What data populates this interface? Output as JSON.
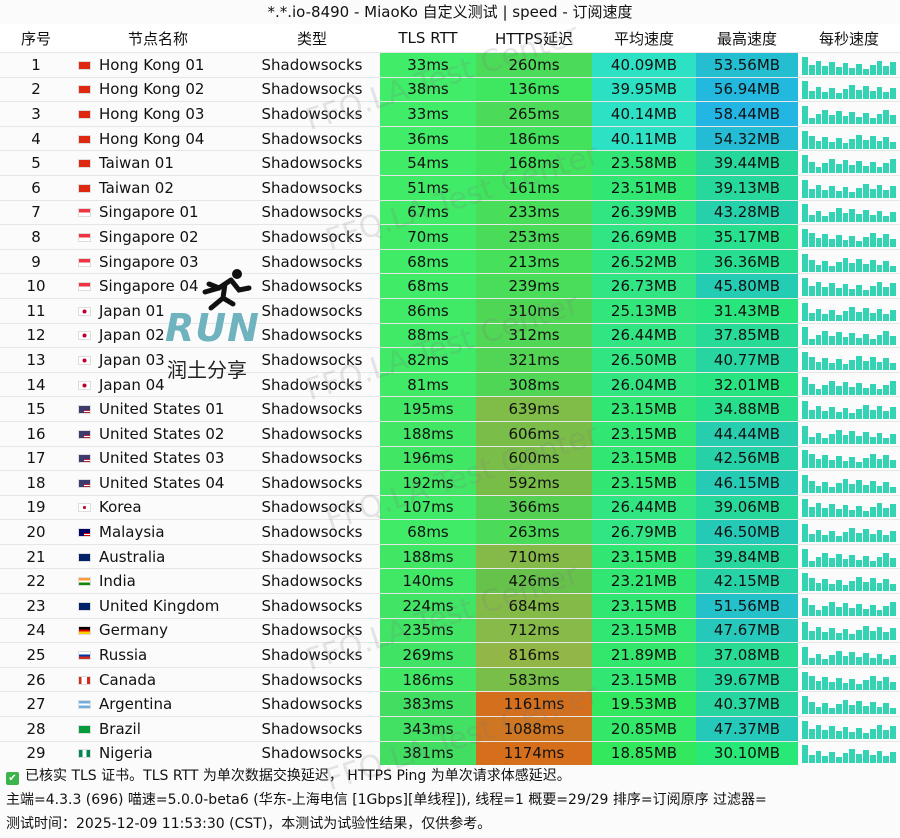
{
  "title": "*.*.io-8490 - MiaoKo 自定义测试 | speed - 订阅速度",
  "headers": [
    "序号",
    "节点名称",
    "类型",
    "TLS RTT",
    "HTTPS延迟",
    "平均速度",
    "最高速度",
    "每秒速度"
  ],
  "colors": {
    "sparkline": "#33d3b4",
    "tls": "#3ee868",
    "avg": "#2ee85a"
  },
  "rows": [
    {
      "idx": "1",
      "name": "Hong Kong 01",
      "flag": "hk",
      "type": "Shadowsocks",
      "tls": "33ms",
      "https": "260ms",
      "avg": "40.09MB",
      "max": "53.56MB"
    },
    {
      "idx": "2",
      "name": "Hong Kong 02",
      "flag": "hk",
      "type": "Shadowsocks",
      "tls": "38ms",
      "https": "136ms",
      "avg": "39.95MB",
      "max": "56.94MB"
    },
    {
      "idx": "3",
      "name": "Hong Kong 03",
      "flag": "hk",
      "type": "Shadowsocks",
      "tls": "33ms",
      "https": "265ms",
      "avg": "40.14MB",
      "max": "58.44MB"
    },
    {
      "idx": "4",
      "name": "Hong Kong 04",
      "flag": "hk",
      "type": "Shadowsocks",
      "tls": "36ms",
      "https": "186ms",
      "avg": "40.11MB",
      "max": "54.32MB"
    },
    {
      "idx": "5",
      "name": "Taiwan 01",
      "flag": "cn",
      "type": "Shadowsocks",
      "tls": "54ms",
      "https": "168ms",
      "avg": "23.58MB",
      "max": "39.44MB"
    },
    {
      "idx": "6",
      "name": "Taiwan 02",
      "flag": "cn",
      "type": "Shadowsocks",
      "tls": "51ms",
      "https": "161ms",
      "avg": "23.51MB",
      "max": "39.13MB"
    },
    {
      "idx": "7",
      "name": "Singapore 01",
      "flag": "sg",
      "type": "Shadowsocks",
      "tls": "67ms",
      "https": "233ms",
      "avg": "26.39MB",
      "max": "43.28MB"
    },
    {
      "idx": "8",
      "name": "Singapore 02",
      "flag": "sg",
      "type": "Shadowsocks",
      "tls": "70ms",
      "https": "253ms",
      "avg": "26.69MB",
      "max": "35.17MB"
    },
    {
      "idx": "9",
      "name": "Singapore 03",
      "flag": "sg",
      "type": "Shadowsocks",
      "tls": "68ms",
      "https": "213ms",
      "avg": "26.52MB",
      "max": "36.36MB"
    },
    {
      "idx": "10",
      "name": "Singapore 04",
      "flag": "sg",
      "type": "Shadowsocks",
      "tls": "68ms",
      "https": "239ms",
      "avg": "26.73MB",
      "max": "45.80MB"
    },
    {
      "idx": "11",
      "name": "Japan 01",
      "flag": "jp",
      "type": "Shadowsocks",
      "tls": "86ms",
      "https": "310ms",
      "avg": "25.13MB",
      "max": "31.43MB"
    },
    {
      "idx": "12",
      "name": "Japan 02",
      "flag": "jp",
      "type": "Shadowsocks",
      "tls": "88ms",
      "https": "312ms",
      "avg": "26.44MB",
      "max": "37.85MB"
    },
    {
      "idx": "13",
      "name": "Japan 03",
      "flag": "jp",
      "type": "Shadowsocks",
      "tls": "82ms",
      "https": "321ms",
      "avg": "26.50MB",
      "max": "40.77MB"
    },
    {
      "idx": "14",
      "name": "Japan 04",
      "flag": "jp",
      "type": "Shadowsocks",
      "tls": "81ms",
      "https": "308ms",
      "avg": "26.04MB",
      "max": "32.01MB"
    },
    {
      "idx": "15",
      "name": "United States 01",
      "flag": "us",
      "type": "Shadowsocks",
      "tls": "195ms",
      "https": "639ms",
      "avg": "23.15MB",
      "max": "34.88MB"
    },
    {
      "idx": "16",
      "name": "United States 02",
      "flag": "us",
      "type": "Shadowsocks",
      "tls": "188ms",
      "https": "606ms",
      "avg": "23.15MB",
      "max": "44.44MB"
    },
    {
      "idx": "17",
      "name": "United States 03",
      "flag": "us",
      "type": "Shadowsocks",
      "tls": "196ms",
      "https": "600ms",
      "avg": "23.15MB",
      "max": "42.56MB"
    },
    {
      "idx": "18",
      "name": "United States 04",
      "flag": "us",
      "type": "Shadowsocks",
      "tls": "192ms",
      "https": "592ms",
      "avg": "23.15MB",
      "max": "46.15MB"
    },
    {
      "idx": "19",
      "name": "Korea",
      "flag": "kr",
      "type": "Shadowsocks",
      "tls": "107ms",
      "https": "366ms",
      "avg": "26.44MB",
      "max": "39.06MB"
    },
    {
      "idx": "20",
      "name": "Malaysia",
      "flag": "my",
      "type": "Shadowsocks",
      "tls": "68ms",
      "https": "263ms",
      "avg": "26.79MB",
      "max": "46.50MB"
    },
    {
      "idx": "21",
      "name": "Australia",
      "flag": "au",
      "type": "Shadowsocks",
      "tls": "188ms",
      "https": "710ms",
      "avg": "23.15MB",
      "max": "39.84MB"
    },
    {
      "idx": "22",
      "name": "India",
      "flag": "in",
      "type": "Shadowsocks",
      "tls": "140ms",
      "https": "426ms",
      "avg": "23.21MB",
      "max": "42.15MB"
    },
    {
      "idx": "23",
      "name": "United Kingdom",
      "flag": "gb",
      "type": "Shadowsocks",
      "tls": "224ms",
      "https": "684ms",
      "avg": "23.15MB",
      "max": "51.56MB"
    },
    {
      "idx": "24",
      "name": "Germany",
      "flag": "de",
      "type": "Shadowsocks",
      "tls": "235ms",
      "https": "712ms",
      "avg": "23.15MB",
      "max": "47.67MB"
    },
    {
      "idx": "25",
      "name": "Russia",
      "flag": "ru",
      "type": "Shadowsocks",
      "tls": "269ms",
      "https": "816ms",
      "avg": "21.89MB",
      "max": "37.08MB"
    },
    {
      "idx": "26",
      "name": "Canada",
      "flag": "ca",
      "type": "Shadowsocks",
      "tls": "186ms",
      "https": "583ms",
      "avg": "23.15MB",
      "max": "39.67MB"
    },
    {
      "idx": "27",
      "name": "Argentina",
      "flag": "ar",
      "type": "Shadowsocks",
      "tls": "383ms",
      "https": "1161ms",
      "avg": "19.53MB",
      "max": "40.37MB"
    },
    {
      "idx": "28",
      "name": "Brazil",
      "flag": "br",
      "type": "Shadowsocks",
      "tls": "343ms",
      "https": "1088ms",
      "avg": "20.85MB",
      "max": "47.37MB"
    },
    {
      "idx": "29",
      "name": "Nigeria",
      "flag": "ng",
      "type": "Shadowsocks",
      "tls": "381ms",
      "https": "1174ms",
      "avg": "18.85MB",
      "max": "30.10MB"
    }
  ],
  "footer": {
    "line1": "已核实 TLS 证书。TLS RTT 为单次数据交换延迟， HTTPS Ping 为单次请求体感延迟。",
    "line2": "主端=4.3.3 (696) 喵速=5.0.0-beta6 (华东-上海电信 [1Gbps][单线程]), 线程=1 概要=29/29 排序=订阅原序 过滤器=",
    "line3": "测试时间：2025-12-09 11:53:30 (CST)，本测试为试验性结果，仅供参考。"
  },
  "watermark": "FFQ.LA Test Center",
  "overlay": {
    "run": "RUN",
    "cn": "润土分享"
  }
}
